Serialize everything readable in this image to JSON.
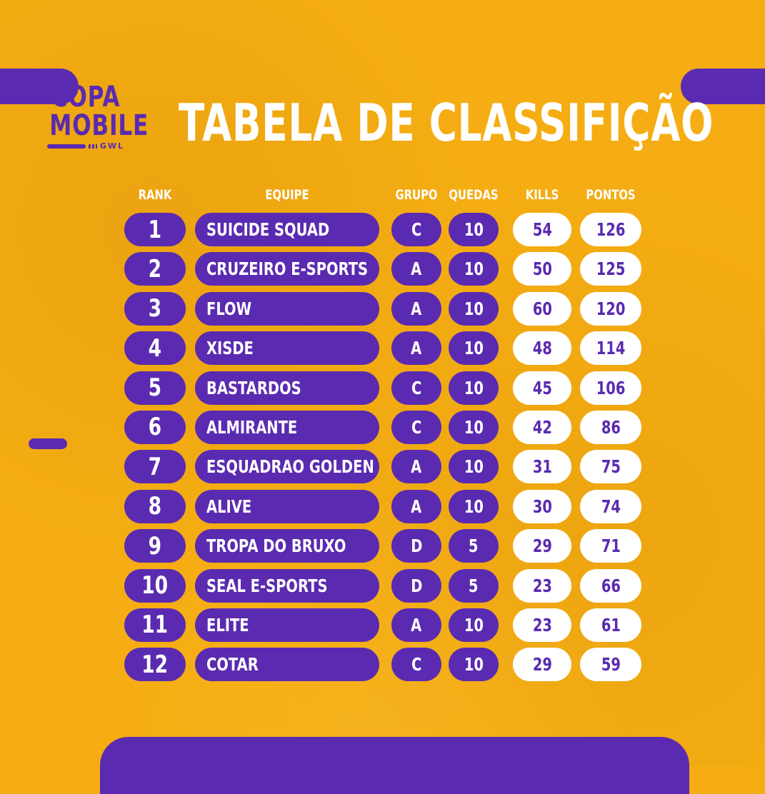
{
  "logo": {
    "line1": "COPA",
    "line2": "MOBILE",
    "sub": "GWL"
  },
  "title": "TABELA DE CLASSIFIÇÃO",
  "headers": {
    "rank": "RANK",
    "team": "EQUIPE",
    "group": "GRUPO",
    "drops": "QUEDAS",
    "kills": "KILLS",
    "points": "PONTOS"
  },
  "rows": [
    {
      "rank": "1",
      "team": "SUICIDE SQUAD",
      "group": "C",
      "drops": "10",
      "kills": "54",
      "points": "126"
    },
    {
      "rank": "2",
      "team": "CRUZEIRO E-SPORTS",
      "group": "A",
      "drops": "10",
      "kills": "50",
      "points": "125"
    },
    {
      "rank": "3",
      "team": "FLOW",
      "group": "A",
      "drops": "10",
      "kills": "60",
      "points": "120"
    },
    {
      "rank": "4",
      "team": "XISDE",
      "group": "A",
      "drops": "10",
      "kills": "48",
      "points": "114"
    },
    {
      "rank": "5",
      "team": "BASTARDOS",
      "group": "C",
      "drops": "10",
      "kills": "45",
      "points": "106"
    },
    {
      "rank": "6",
      "team": "ALMIRANTE",
      "group": "C",
      "drops": "10",
      "kills": "42",
      "points": "86"
    },
    {
      "rank": "7",
      "team": "ESQUADRAO GOLDEN",
      "group": "A",
      "drops": "10",
      "kills": "31",
      "points": "75"
    },
    {
      "rank": "8",
      "team": "ALIVE",
      "group": "A",
      "drops": "10",
      "kills": "30",
      "points": "74"
    },
    {
      "rank": "9",
      "team": "TROPA DO BRUXO",
      "group": "D",
      "drops": "5",
      "kills": "29",
      "points": "71"
    },
    {
      "rank": "10",
      "team": "SEAL E-SPORTS",
      "group": "D",
      "drops": "5",
      "kills": "23",
      "points": "66"
    },
    {
      "rank": "11",
      "team": "ELITE",
      "group": "A",
      "drops": "10",
      "kills": "23",
      "points": "61"
    },
    {
      "rank": "12",
      "team": "COTAR",
      "group": "C",
      "drops": "10",
      "kills": "29",
      "points": "59"
    }
  ],
  "colors": {
    "background": "#f5ad13",
    "purple": "#5a2bb0",
    "white": "#ffffff"
  }
}
